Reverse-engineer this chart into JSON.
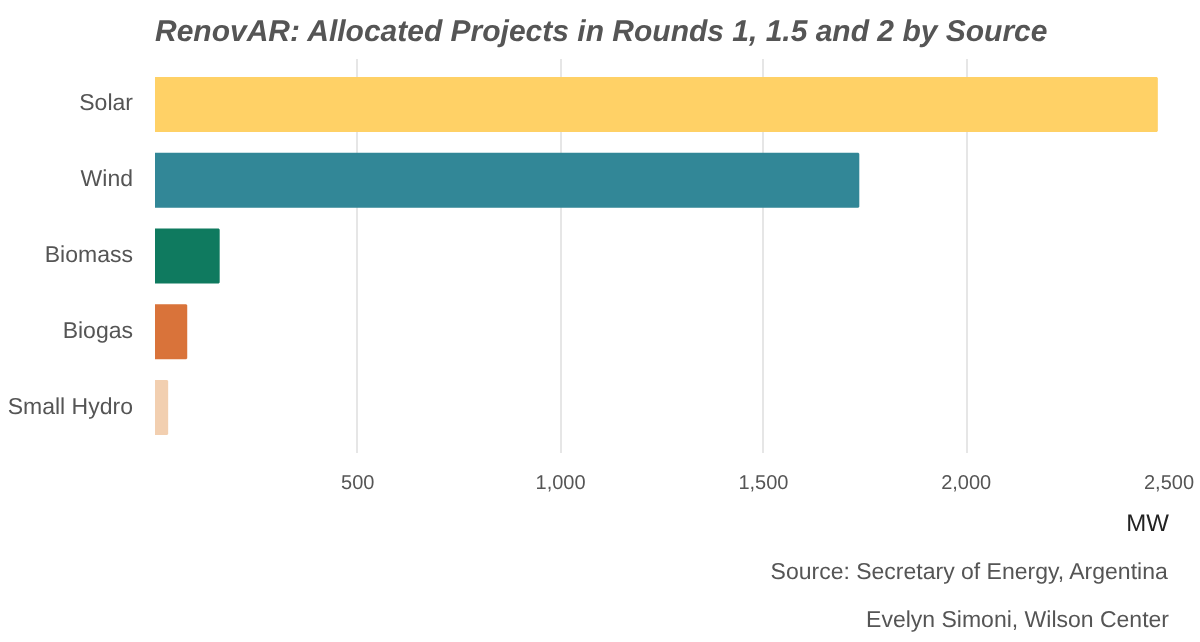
{
  "chart_data": {
    "type": "bar",
    "orientation": "horizontal",
    "title": "RenovAR: Allocated Projects in Rounds 1, 1.5 and 2 by Source",
    "categories": [
      "Solar",
      "Wind",
      "Biomass",
      "Biogas",
      "Small Hydro"
    ],
    "values": [
      2470,
      1734,
      157,
      77,
      30
    ],
    "colors": [
      "#ffd166",
      "#328797",
      "#0f7a5f",
      "#d9733a",
      "#f2cfb0"
    ],
    "xlabel": "MW",
    "xlim": [
      0,
      2500
    ],
    "xticks": [
      500,
      {
        "value": 1000,
        "label": "1,000"
      },
      {
        "value": 1500,
        "label": "1,500"
      },
      {
        "value": 2000,
        "label": "2,000"
      },
      {
        "value": 2500,
        "label": "2,500"
      }
    ],
    "grid": "x",
    "annotations": [
      "Source: Secretary of Energy, Argentina",
      "Evelyn Simoni, Wilson Center"
    ]
  }
}
